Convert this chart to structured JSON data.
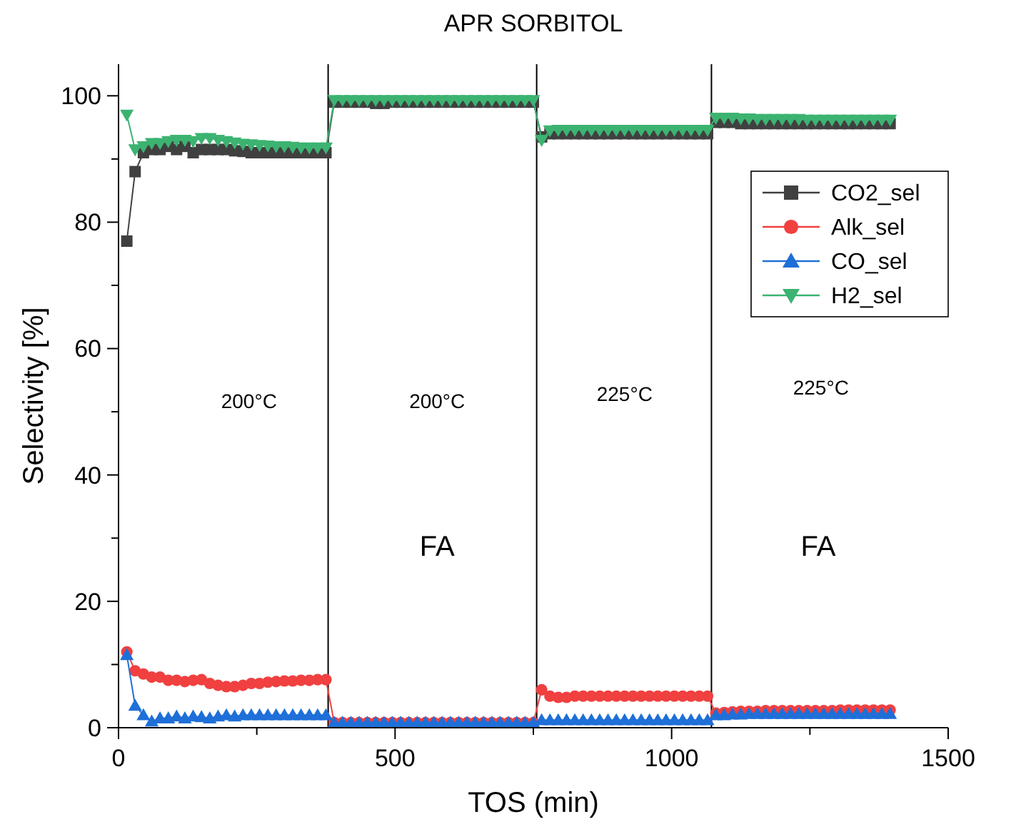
{
  "chart_data": {
    "type": "line",
    "title": "APR SORBITOL",
    "xlabel": "TOS (min)",
    "ylabel": "Selectivity [%]",
    "xlim": [
      0,
      1500
    ],
    "xticks": [
      0,
      {
        "value": 250,
        "label": null
      },
      500,
      {
        "value": 750,
        "label": null
      },
      1000,
      {
        "value": 1250,
        "label": null
      },
      1500
    ],
    "ylim": [
      0,
      105
    ],
    "yticks": [
      0,
      {
        "value": 10,
        "label": null
      },
      20,
      {
        "value": 30,
        "label": null
      },
      40,
      {
        "value": 50,
        "label": null
      },
      60,
      {
        "value": 70,
        "label": null
      },
      80,
      {
        "value": 90,
        "label": null
      },
      100
    ],
    "grid": false,
    "legend": "top right",
    "line_style": "solid",
    "x": [
      15,
      30,
      45,
      60,
      75,
      90,
      105,
      120,
      135,
      150,
      165,
      180,
      195,
      210,
      225,
      240,
      255,
      270,
      285,
      300,
      315,
      330,
      345,
      360,
      375,
      390,
      405,
      420,
      435,
      450,
      465,
      480,
      495,
      510,
      525,
      540,
      555,
      570,
      585,
      600,
      615,
      630,
      645,
      660,
      675,
      690,
      705,
      720,
      735,
      750,
      765,
      780,
      795,
      810,
      825,
      840,
      855,
      870,
      885,
      900,
      915,
      930,
      945,
      960,
      975,
      990,
      1005,
      1020,
      1035,
      1050,
      1065,
      1080,
      1095,
      1110,
      1125,
      1140,
      1155,
      1170,
      1185,
      1200,
      1215,
      1230,
      1245,
      1260,
      1275,
      1290,
      1305,
      1320,
      1335,
      1350,
      1365,
      1380,
      1395
    ],
    "series": [
      {
        "name": "CO2_sel",
        "color": "#404040",
        "marker": "square",
        "values": [
          77,
          88,
          91,
          91.5,
          91.5,
          92,
          91.5,
          92,
          91,
          91.5,
          91.5,
          91.5,
          91.5,
          91.3,
          91.2,
          91,
          91,
          91,
          91,
          91,
          91,
          91,
          91,
          91,
          91,
          99,
          99,
          99,
          99,
          99,
          98.8,
          98.8,
          99,
          99,
          99,
          99,
          99,
          99,
          99,
          99,
          99,
          99,
          99,
          99,
          99,
          99,
          99,
          99,
          99,
          99,
          93.5,
          94,
          94,
          94,
          94,
          94,
          94,
          94,
          94,
          94,
          94,
          94,
          94,
          94,
          94,
          94,
          94,
          94,
          94,
          94,
          94,
          95.8,
          95.8,
          95.8,
          95.6,
          95.6,
          95.6,
          95.6,
          95.6,
          95.6,
          95.6,
          95.6,
          95.6,
          95.6,
          95.6,
          95.6,
          95.6,
          95.6,
          95.6,
          95.6,
          95.6,
          95.6,
          95.6
        ]
      },
      {
        "name": "Alk_sel",
        "color": "#f04040",
        "marker": "circle",
        "values": [
          12,
          9,
          8.5,
          8,
          8,
          7.5,
          7.5,
          7.3,
          7.5,
          7.6,
          7,
          6.7,
          6.5,
          6.5,
          6.7,
          7,
          7,
          7.2,
          7.3,
          7.4,
          7.4,
          7.5,
          7.5,
          7.6,
          7.6,
          0.8,
          0.8,
          0.8,
          0.8,
          0.8,
          0.8,
          0.8,
          0.8,
          0.8,
          0.8,
          0.8,
          0.8,
          0.8,
          0.8,
          0.8,
          0.8,
          0.8,
          0.8,
          0.8,
          0.8,
          0.8,
          0.8,
          0.8,
          0.8,
          0.8,
          6,
          5,
          4.8,
          4.8,
          5,
          5,
          5,
          5,
          5,
          5,
          5,
          5,
          5,
          5,
          5,
          5,
          5,
          5,
          5,
          5,
          5,
          2.3,
          2.4,
          2.5,
          2.6,
          2.6,
          2.6,
          2.7,
          2.7,
          2.7,
          2.7,
          2.7,
          2.7,
          2.7,
          2.7,
          2.7,
          2.8,
          2.8,
          2.8,
          2.8,
          2.8,
          2.8,
          2.8
        ]
      },
      {
        "name": "CO_sel",
        "color": "#1f6fd8",
        "marker": "triangle",
        "values": [
          11.5,
          3.5,
          2,
          1,
          1.5,
          1.5,
          1.8,
          1.5,
          1.8,
          1.7,
          1.5,
          1.8,
          2,
          1.8,
          2,
          2,
          2,
          2,
          2,
          2,
          2,
          2,
          2,
          2,
          2,
          0.8,
          0.8,
          0.8,
          0.8,
          0.8,
          0.8,
          0.8,
          0.8,
          0.8,
          0.8,
          0.8,
          0.8,
          0.8,
          0.8,
          0.8,
          0.8,
          0.8,
          0.8,
          0.8,
          0.8,
          0.8,
          0.8,
          0.8,
          0.8,
          0.8,
          1.2,
          1.2,
          1.2,
          1.2,
          1.2,
          1.2,
          1.2,
          1.2,
          1.2,
          1.2,
          1.2,
          1.2,
          1.2,
          1.2,
          1.2,
          1.2,
          1.2,
          1.2,
          1.2,
          1.2,
          1.2,
          2,
          2,
          2.1,
          2.1,
          2.2,
          2.2,
          2.2,
          2.2,
          2.2,
          2.2,
          2.2,
          2.2,
          2.2,
          2.2,
          2.2,
          2.2,
          2.2,
          2.2,
          2.2,
          2.2,
          2.2,
          2.2
        ]
      },
      {
        "name": "H2_sel",
        "color": "#3cb371",
        "marker": "triangle-down",
        "values": [
          97,
          91.5,
          92,
          92.5,
          92.5,
          92.8,
          93,
          93,
          92.8,
          93.3,
          93.3,
          93,
          92.8,
          92.6,
          92.4,
          92.3,
          92.2,
          92.1,
          92,
          92,
          91.9,
          91.8,
          91.8,
          91.8,
          91.8,
          99.3,
          99.3,
          99.3,
          99.3,
          99.3,
          99.3,
          99.3,
          99.3,
          99.3,
          99.3,
          99.3,
          99.3,
          99.3,
          99.3,
          99.3,
          99.3,
          99.3,
          99.3,
          99.3,
          99.3,
          99.3,
          99.3,
          99.3,
          99.3,
          99.3,
          93,
          94.5,
          94.6,
          94.6,
          94.6,
          94.6,
          94.6,
          94.6,
          94.6,
          94.6,
          94.6,
          94.6,
          94.6,
          94.6,
          94.6,
          94.6,
          94.6,
          94.6,
          94.6,
          94.6,
          94.6,
          96.5,
          96.5,
          96.5,
          96.4,
          96.4,
          96.3,
          96.3,
          96.3,
          96.3,
          96.3,
          96.3,
          96.2,
          96.2,
          96.2,
          96.2,
          96.2,
          96.2,
          96.2,
          96.2,
          96.2,
          96.2,
          96.2
        ]
      }
    ],
    "ref_lines": [
      {
        "axis": "x",
        "value": 379,
        "color": "#000000"
      },
      {
        "axis": "x",
        "value": 756,
        "color": "#000000"
      },
      {
        "axis": "x",
        "value": 1072,
        "color": "#000000"
      }
    ],
    "annotations": [
      "200°C",
      "200°C",
      "225°C",
      "225°C",
      "FA",
      "FA"
    ]
  }
}
